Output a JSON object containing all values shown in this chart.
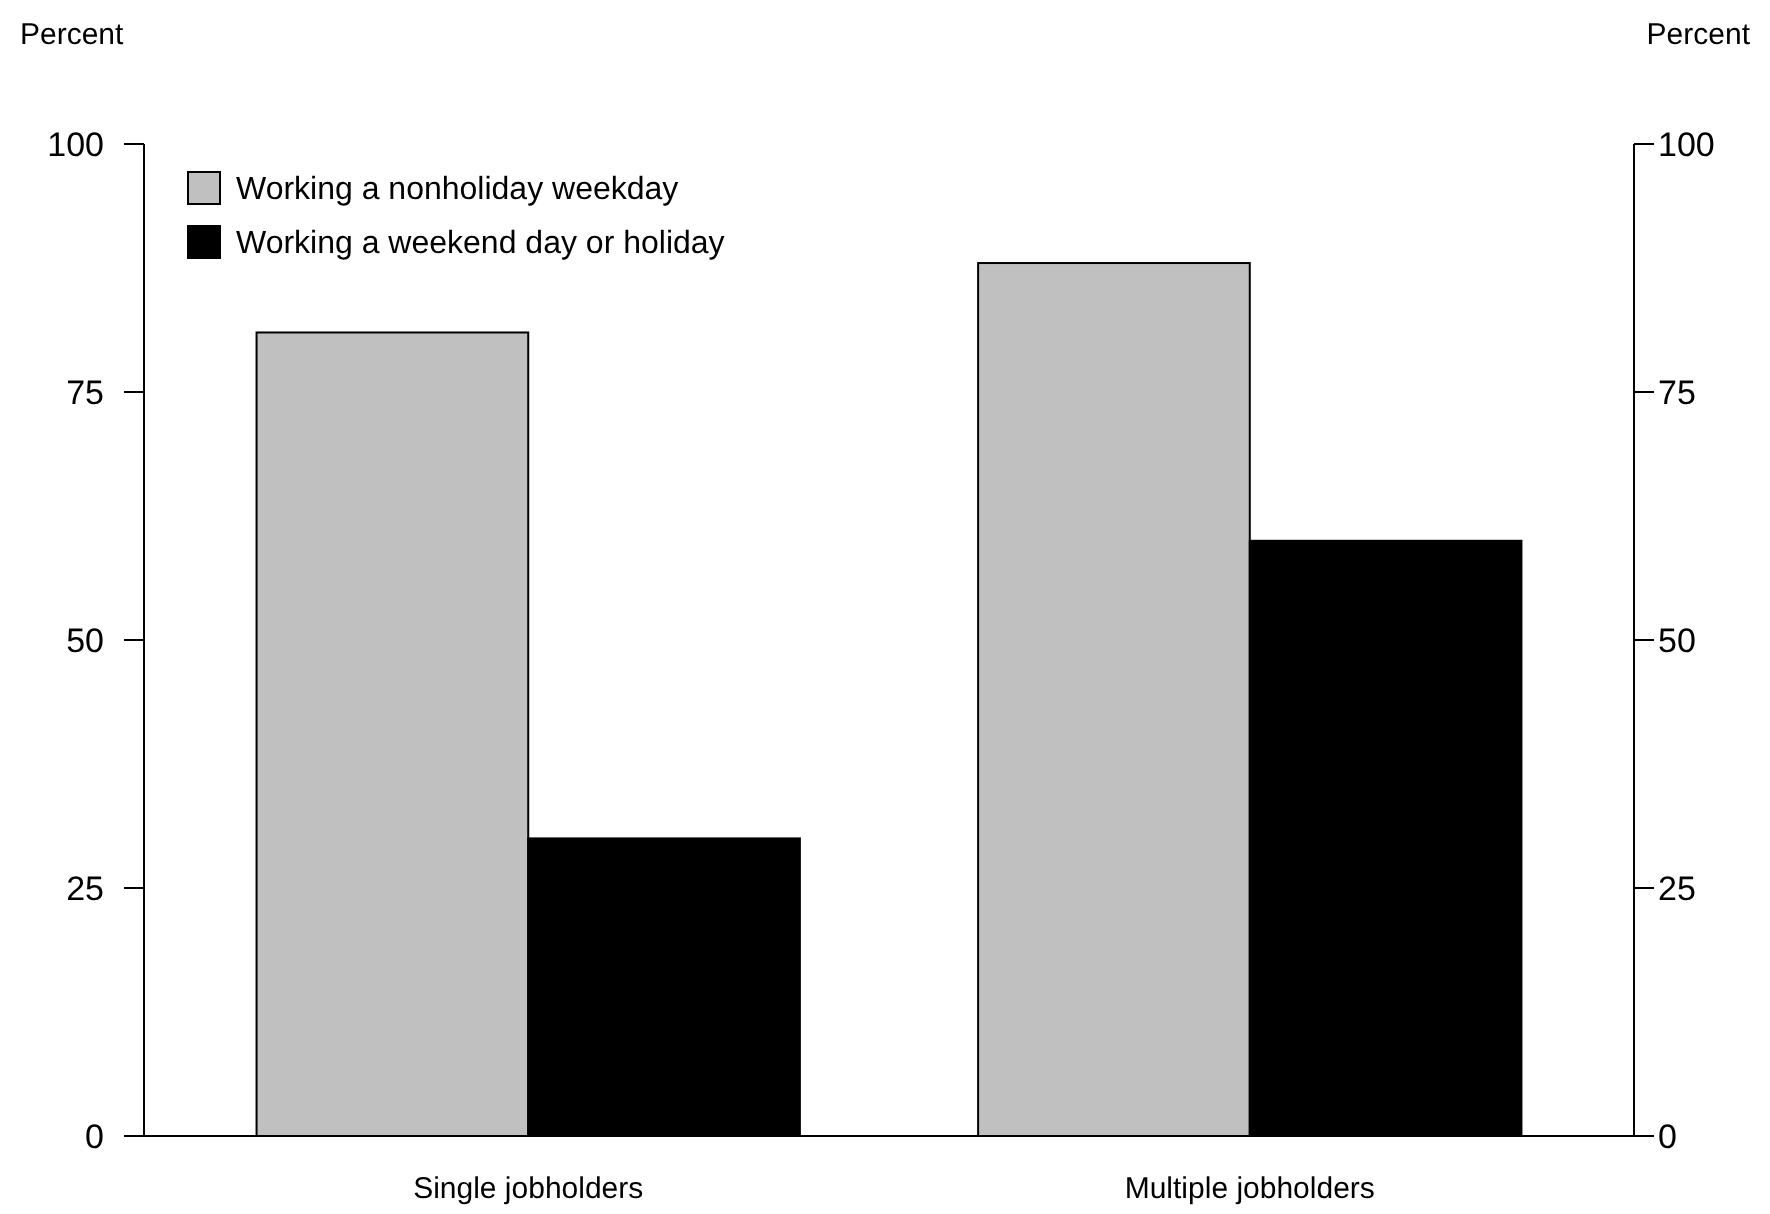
{
  "chart_data": {
    "type": "bar",
    "ylabel": "Percent",
    "y2label": "Percent",
    "categories": [
      "Single jobholders",
      "Multiple jobholders"
    ],
    "series": [
      {
        "name": "Working a nonholiday weekday",
        "color": "#c0c0c0",
        "values": [
          81,
          88
        ]
      },
      {
        "name": "Working a weekend day or holiday",
        "color": "#000000",
        "values": [
          30,
          60
        ]
      }
    ],
    "ylim": [
      0,
      100
    ],
    "yticks": [
      0,
      25,
      50,
      75,
      100
    ],
    "y2lim": [
      0,
      100
    ],
    "y2ticks": [
      0,
      25,
      50,
      75,
      100
    ],
    "grid": false,
    "legend": "top left"
  }
}
